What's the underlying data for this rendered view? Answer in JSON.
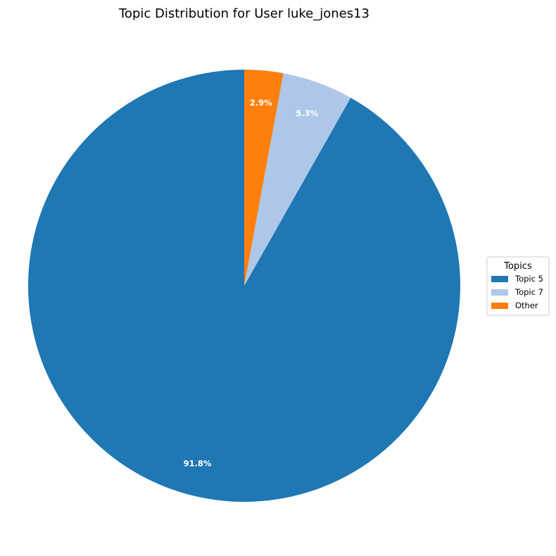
{
  "chart_data": {
    "type": "pie",
    "title": "Topic Distribution for User luke_jones13",
    "start_angle_deg": 90,
    "direction": "counterclockwise",
    "slices": [
      {
        "label": "Topic 5",
        "value": 91.8,
        "pct_label": "91.8%",
        "color": "#1f77b4"
      },
      {
        "label": "Topic 7",
        "value": 5.3,
        "pct_label": "5.3%",
        "color": "#aec7e8"
      },
      {
        "label": "Other",
        "value": 2.9,
        "pct_label": "2.9%",
        "color": "#ff7f0e"
      }
    ],
    "legend": {
      "title": "Topics",
      "placement": "right"
    }
  }
}
